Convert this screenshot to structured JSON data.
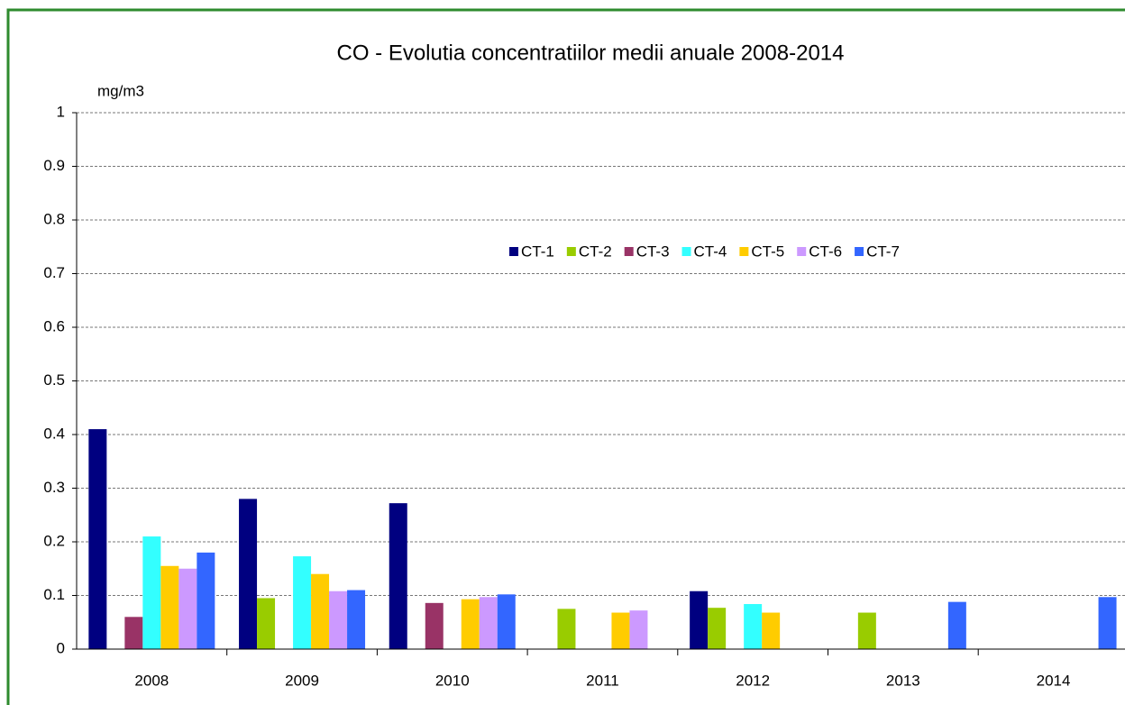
{
  "chart_data": {
    "type": "bar",
    "title": "CO - Evolutia concentratiilor medii anuale 2008-2014",
    "y_label": "mg/m3",
    "categories": [
      "2008",
      "2009",
      "2010",
      "2011",
      "2012",
      "2013",
      "2014"
    ],
    "series": [
      {
        "name": "CT-1",
        "color": "#000080",
        "values": [
          0.41,
          0.28,
          0.272,
          null,
          0.108,
          null,
          null
        ]
      },
      {
        "name": "CT-2",
        "color": "#99cc00",
        "values": [
          null,
          0.095,
          null,
          0.075,
          0.077,
          0.068,
          null
        ]
      },
      {
        "name": "CT-3",
        "color": "#993366",
        "values": [
          0.06,
          null,
          0.086,
          null,
          null,
          null,
          null
        ]
      },
      {
        "name": "CT-4",
        "color": "#33ffff",
        "values": [
          0.21,
          0.173,
          null,
          null,
          0.084,
          null,
          null
        ]
      },
      {
        "name": "CT-5",
        "color": "#ffcc00",
        "values": [
          0.155,
          0.14,
          0.093,
          0.068,
          0.068,
          null,
          null
        ]
      },
      {
        "name": "CT-6",
        "color": "#cc99ff",
        "values": [
          0.15,
          0.108,
          0.097,
          0.072,
          null,
          null,
          null
        ]
      },
      {
        "name": "CT-7",
        "color": "#3366ff",
        "values": [
          0.18,
          0.11,
          0.102,
          null,
          null,
          0.088,
          0.097
        ]
      }
    ],
    "ylim": [
      0,
      1
    ],
    "yticks": [
      0,
      0.1,
      0.2,
      0.3,
      0.4,
      0.5,
      0.6,
      0.7,
      0.8,
      0.9,
      1
    ],
    "grid": true
  }
}
